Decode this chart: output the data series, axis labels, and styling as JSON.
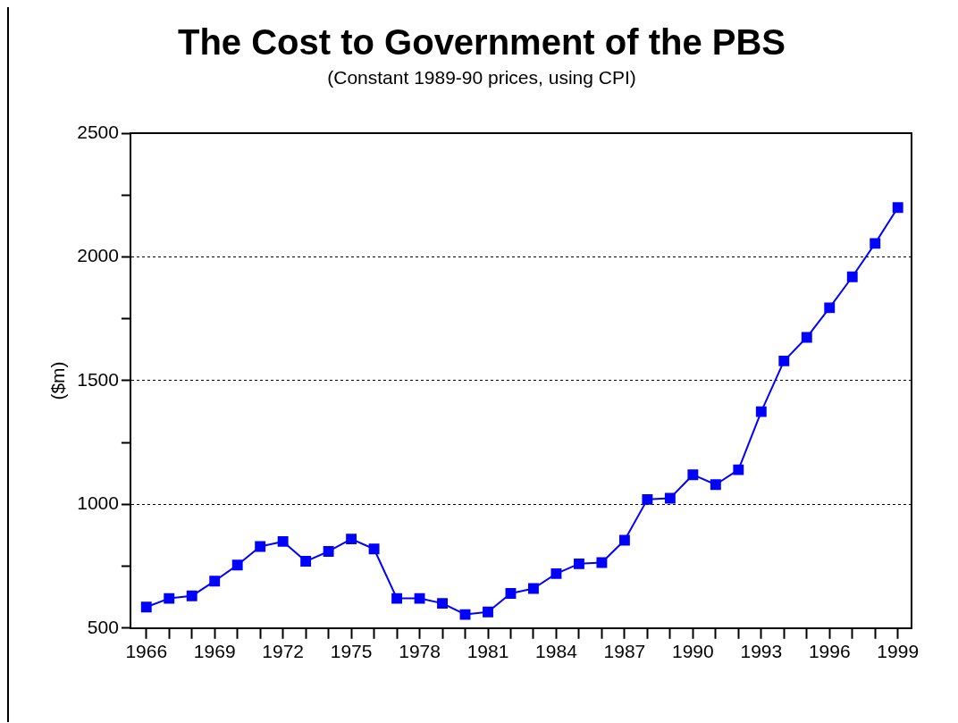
{
  "chart_data": {
    "type": "line",
    "title": "The Cost to Government of the PBS",
    "subtitle": "(Constant 1989-90 prices, using CPI)",
    "ylabel": "($m)",
    "x": [
      1966,
      1967,
      1968,
      1969,
      1970,
      1971,
      1972,
      1973,
      1974,
      1975,
      1976,
      1977,
      1978,
      1979,
      1980,
      1981,
      1982,
      1983,
      1984,
      1985,
      1986,
      1987,
      1988,
      1989,
      1990,
      1991,
      1992,
      1993,
      1994,
      1995,
      1996,
      1997,
      1998,
      1999
    ],
    "series": [
      {
        "color": "#0000ff",
        "values": [
          585,
          620,
          630,
          690,
          755,
          830,
          850,
          770,
          810,
          860,
          820,
          620,
          620,
          600,
          555,
          565,
          640,
          660,
          720,
          760,
          765,
          855,
          1020,
          1025,
          1120,
          1080,
          1140,
          1375,
          1580,
          1675,
          1795,
          1920,
          2055,
          2200
        ]
      }
    ],
    "xlim": [
      1965.3,
      1999.6
    ],
    "xticks": [
      1966,
      {
        "value": 1967,
        "label": null
      },
      {
        "value": 1968,
        "label": null
      },
      1969,
      {
        "value": 1970,
        "label": null
      },
      {
        "value": 1971,
        "label": null
      },
      1972,
      {
        "value": 1973,
        "label": null
      },
      {
        "value": 1974,
        "label": null
      },
      1975,
      {
        "value": 1976,
        "label": null
      },
      {
        "value": 1977,
        "label": null
      },
      1978,
      {
        "value": 1979,
        "label": null
      },
      {
        "value": 1980,
        "label": null
      },
      1981,
      {
        "value": 1982,
        "label": null
      },
      {
        "value": 1983,
        "label": null
      },
      1984,
      {
        "value": 1985,
        "label": null
      },
      {
        "value": 1986,
        "label": null
      },
      1987,
      {
        "value": 1988,
        "label": null
      },
      {
        "value": 1989,
        "label": null
      },
      1990,
      {
        "value": 1991,
        "label": null
      },
      {
        "value": 1992,
        "label": null
      },
      1993,
      {
        "value": 1994,
        "label": null
      },
      {
        "value": 1995,
        "label": null
      },
      1996,
      {
        "value": 1997,
        "label": null
      },
      {
        "value": 1998,
        "label": null
      },
      1999
    ],
    "ylim": [
      500,
      2500
    ],
    "yticks": [
      500,
      {
        "value": 750,
        "label": null
      },
      1000,
      {
        "value": 1250,
        "label": null
      },
      1500,
      {
        "value": 1750,
        "label": null
      },
      2000,
      {
        "value": 2250,
        "label": null
      },
      2500
    ],
    "grid": "y",
    "legend": false,
    "marker": "square",
    "line_style": "solid"
  }
}
